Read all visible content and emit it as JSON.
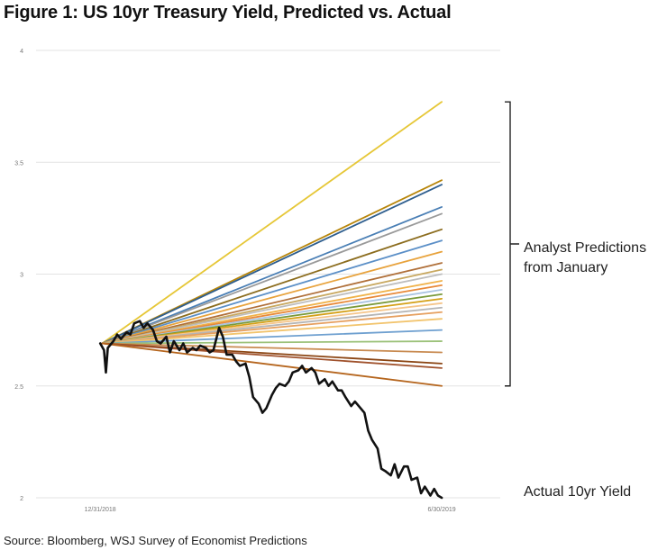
{
  "chart_data": {
    "type": "line",
    "title": "Figure 1: US 10yr Treasury Yield, Predicted vs. Actual",
    "source": "Source: Bloomberg, WSJ Survey of Economist Predictions",
    "ylim": [
      2,
      4
    ],
    "yticks": [
      "2",
      "2.5",
      "3",
      "3.5",
      "4"
    ],
    "xlim": [
      "11/27/2018",
      "7/31/2019"
    ],
    "xticks": [
      {
        "value": "2018-12-31",
        "label": "12/31/2018"
      },
      {
        "value": "2019-06-30",
        "label": "6/30/2019"
      }
    ],
    "bracket_label": [
      "Analyst Predictions",
      "from January"
    ],
    "predictions": {
      "start": {
        "x": "2019-01-01",
        "y": 2.69
      },
      "end_x": "2019-06-30",
      "series": [
        {
          "end": 3.77,
          "color": "#e6c737"
        },
        {
          "end": 3.42,
          "color": "#b8860b"
        },
        {
          "end": 3.4,
          "color": "#2e5e8e"
        },
        {
          "end": 3.3,
          "color": "#4a7fb5"
        },
        {
          "end": 3.27,
          "color": "#9a9a9a"
        },
        {
          "end": 3.2,
          "color": "#8c6d1f"
        },
        {
          "end": 3.15,
          "color": "#5b8fc7"
        },
        {
          "end": 3.1,
          "color": "#e8a33d"
        },
        {
          "end": 3.05,
          "color": "#b0703a"
        },
        {
          "end": 3.02,
          "color": "#c8a860"
        },
        {
          "end": 3.0,
          "color": "#bdbdbd"
        },
        {
          "end": 2.97,
          "color": "#f0b24a"
        },
        {
          "end": 2.95,
          "color": "#e88a3a"
        },
        {
          "end": 2.93,
          "color": "#a9c3e0"
        },
        {
          "end": 2.91,
          "color": "#7a9a3a"
        },
        {
          "end": 2.89,
          "color": "#d4a017"
        },
        {
          "end": 2.87,
          "color": "#f5c58a"
        },
        {
          "end": 2.85,
          "color": "#b5b5b5"
        },
        {
          "end": 2.83,
          "color": "#e6a060"
        },
        {
          "end": 2.8,
          "color": "#f2c46d"
        },
        {
          "end": 2.75,
          "color": "#6fa0d0"
        },
        {
          "end": 2.7,
          "color": "#9cc27a"
        },
        {
          "end": 2.65,
          "color": "#c88a50"
        },
        {
          "end": 2.6,
          "color": "#8b4513"
        },
        {
          "end": 2.58,
          "color": "#a0522d"
        },
        {
          "end": 2.5,
          "color": "#b5651d"
        }
      ]
    },
    "actual": {
      "label": "Actual 10yr Yield",
      "color": "#111111",
      "x": [
        "2018-12-31",
        "2019-01-02",
        "2019-01-03",
        "2019-01-04",
        "2019-01-07",
        "2019-01-09",
        "2019-01-11",
        "2019-01-14",
        "2019-01-16",
        "2019-01-18",
        "2019-01-21",
        "2019-01-23",
        "2019-01-25",
        "2019-01-28",
        "2019-01-30",
        "2019-02-01",
        "2019-02-04",
        "2019-02-06",
        "2019-02-08",
        "2019-02-11",
        "2019-02-13",
        "2019-02-15",
        "2019-02-18",
        "2019-02-20",
        "2019-02-22",
        "2019-02-25",
        "2019-02-27",
        "2019-03-01",
        "2019-03-04",
        "2019-03-06",
        "2019-03-08",
        "2019-03-11",
        "2019-03-13",
        "2019-03-15",
        "2019-03-18",
        "2019-03-20",
        "2019-03-22",
        "2019-03-25",
        "2019-03-27",
        "2019-03-29",
        "2019-04-01",
        "2019-04-03",
        "2019-04-05",
        "2019-04-08",
        "2019-04-10",
        "2019-04-12",
        "2019-04-15",
        "2019-04-17",
        "2019-04-19",
        "2019-04-22",
        "2019-04-24",
        "2019-04-26",
        "2019-04-29",
        "2019-05-01",
        "2019-05-03",
        "2019-05-06",
        "2019-05-08",
        "2019-05-10",
        "2019-05-13",
        "2019-05-15",
        "2019-05-17",
        "2019-05-20",
        "2019-05-22",
        "2019-05-24",
        "2019-05-27",
        "2019-05-29",
        "2019-05-31",
        "2019-06-03",
        "2019-06-05",
        "2019-06-07",
        "2019-06-10",
        "2019-06-12",
        "2019-06-14",
        "2019-06-17",
        "2019-06-19",
        "2019-06-21",
        "2019-06-24",
        "2019-06-26",
        "2019-06-28",
        "2019-06-30"
      ],
      "y": [
        2.69,
        2.66,
        2.56,
        2.67,
        2.7,
        2.73,
        2.71,
        2.74,
        2.73,
        2.78,
        2.79,
        2.76,
        2.78,
        2.75,
        2.7,
        2.69,
        2.72,
        2.65,
        2.7,
        2.66,
        2.69,
        2.65,
        2.67,
        2.66,
        2.68,
        2.67,
        2.65,
        2.66,
        2.76,
        2.72,
        2.64,
        2.64,
        2.61,
        2.59,
        2.6,
        2.54,
        2.45,
        2.42,
        2.38,
        2.4,
        2.46,
        2.49,
        2.51,
        2.5,
        2.52,
        2.56,
        2.57,
        2.59,
        2.56,
        2.58,
        2.56,
        2.51,
        2.53,
        2.5,
        2.52,
        2.48,
        2.48,
        2.45,
        2.41,
        2.43,
        2.41,
        2.38,
        2.3,
        2.26,
        2.22,
        2.13,
        2.12,
        2.1,
        2.15,
        2.09,
        2.14,
        2.14,
        2.08,
        2.09,
        2.02,
        2.05,
        2.01,
        2.04,
        2.01,
        2.0
      ]
    }
  }
}
